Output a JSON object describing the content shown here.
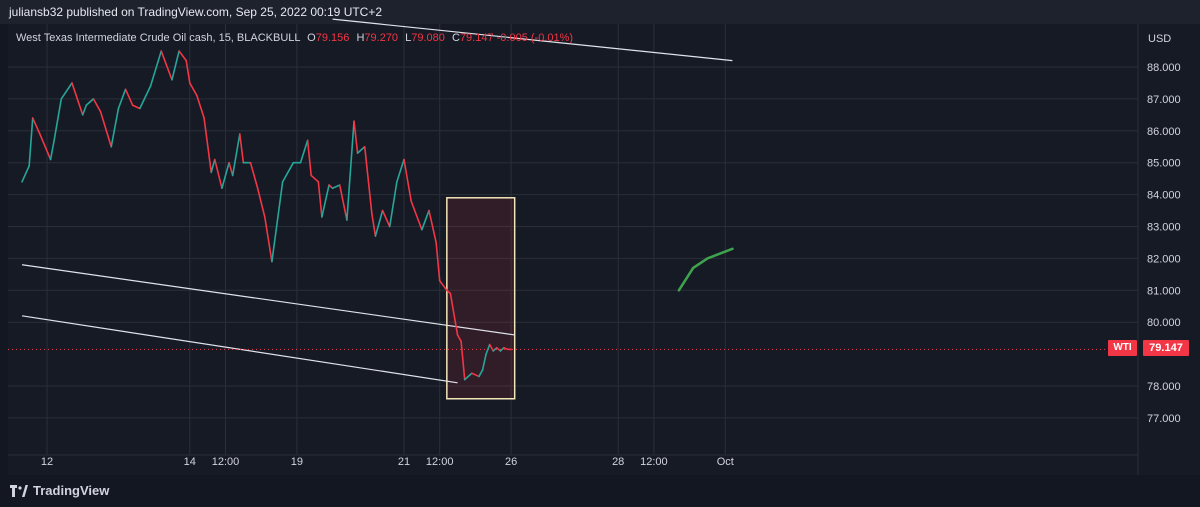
{
  "header": {
    "published_text": "juliansb32 published on TradingView.com, Sep 25, 2022 00:19 UTC+2"
  },
  "legend": {
    "symbol": "West Texas Intermediate Crude Oil cash, 15, BLACKBULL",
    "open_key": "O",
    "open": "79.156",
    "high_key": "H",
    "high": "79.270",
    "low_key": "L",
    "low": "79.080",
    "close_key": "C",
    "close": "79.147",
    "change": "-0.005 (-0.01%)"
  },
  "price_tag": {
    "symbol": "WTI",
    "value": "79.147"
  },
  "brand": {
    "logo_text": "TradingView"
  },
  "colors": {
    "up": "#26a69a",
    "down": "#f23645",
    "background": "#161a25",
    "grid": "#2a2e39",
    "trendline": "#e0e3eb",
    "box_border": "#f5e6b8",
    "box_fill": "rgba(242,54,69,0.12)",
    "projection": "#3fa34d"
  },
  "chart_data": {
    "type": "line",
    "title": "West Texas Intermediate Crude Oil cash, 15, BLACKBULL",
    "currency": "USD",
    "ylim": [
      76.2,
      89.3
    ],
    "y_ticks": [
      88.0,
      87.0,
      86.0,
      85.0,
      84.0,
      83.0,
      82.0,
      81.0,
      80.0,
      78.0,
      77.0
    ],
    "y_tick_labels": [
      "88.000",
      "87.000",
      "86.000",
      "85.000",
      "84.000",
      "83.000",
      "82.000",
      "81.000",
      "80.000",
      "78.000",
      "77.000"
    ],
    "x_ticks": [
      {
        "label": "12",
        "t": 0.0
      },
      {
        "label": "14",
        "t": 2.0
      },
      {
        "label": "12:00",
        "t": 2.5
      },
      {
        "label": "19",
        "t": 3.5
      },
      {
        "label": "21",
        "t": 5.0
      },
      {
        "label": "12:00",
        "t": 5.5
      },
      {
        "label": "26",
        "t": 6.5
      },
      {
        "label": "28",
        "t": 8.0
      },
      {
        "label": "12:00",
        "t": 8.5
      },
      {
        "label": "Oct",
        "t": 9.5
      }
    ],
    "series": [
      {
        "x": [
          -0.35,
          -0.25,
          -0.2,
          -0.1,
          0.05,
          0.1,
          0.2,
          0.35,
          0.5,
          0.55,
          0.65,
          0.75,
          0.9,
          1.0,
          1.1,
          1.2,
          1.3,
          1.45,
          1.6,
          1.75,
          1.85,
          1.95,
          2.0,
          2.1,
          2.2,
          2.3,
          2.35,
          2.45,
          2.55,
          2.6,
          2.7,
          2.75,
          2.85,
          2.95,
          3.05,
          3.15,
          3.3,
          3.45,
          3.55,
          3.65,
          3.7,
          3.8,
          3.85,
          3.95,
          4.0,
          4.1,
          4.2,
          4.3,
          4.35,
          4.45,
          4.55,
          4.6,
          4.7,
          4.8,
          4.9,
          5.0,
          5.1,
          5.2,
          5.25,
          5.35,
          5.45,
          5.5,
          5.6,
          5.65,
          5.75,
          5.8,
          5.85,
          5.95,
          6.05,
          6.1,
          6.15,
          6.2,
          6.25,
          6.3,
          6.35,
          6.4,
          6.45,
          6.5
        ],
        "close": [
          84.4,
          84.9,
          86.4,
          85.9,
          85.1,
          85.7,
          87.0,
          87.5,
          86.5,
          86.8,
          87.0,
          86.6,
          85.5,
          86.7,
          87.3,
          86.8,
          86.7,
          87.4,
          88.5,
          87.6,
          88.5,
          88.2,
          87.5,
          87.1,
          86.4,
          84.7,
          85.1,
          84.2,
          85.0,
          84.6,
          85.9,
          85.0,
          85.0,
          84.2,
          83.3,
          81.9,
          84.4,
          85.0,
          85.0,
          85.7,
          84.6,
          84.4,
          83.3,
          84.3,
          84.2,
          84.3,
          83.2,
          86.3,
          85.3,
          85.5,
          83.4,
          82.7,
          83.5,
          83.0,
          84.4,
          85.1,
          83.8,
          83.2,
          82.9,
          83.5,
          82.5,
          81.3,
          81.0,
          80.9,
          79.6,
          79.4,
          78.2,
          78.4,
          78.3,
          78.5,
          79.0,
          79.3,
          79.1,
          79.2,
          79.1,
          79.2,
          79.15,
          79.147
        ],
        "name": ""
      }
    ],
    "trendlines": [
      {
        "x": [
          4.0,
          9.6
        ],
        "y": [
          89.5,
          88.2
        ]
      },
      {
        "x": [
          -0.35,
          6.55
        ],
        "y": [
          81.8,
          79.6
        ]
      },
      {
        "x": [
          -0.35,
          5.75
        ],
        "y": [
          80.2,
          78.1
        ]
      }
    ],
    "highlight_box": {
      "x": [
        5.6,
        6.55
      ],
      "y": [
        77.6,
        83.9
      ]
    },
    "projection": {
      "x": [
        8.85,
        9.05,
        9.25,
        9.6
      ],
      "y": [
        81.0,
        81.7,
        82.0,
        82.3
      ]
    },
    "last_price": 79.147,
    "grid": true
  }
}
